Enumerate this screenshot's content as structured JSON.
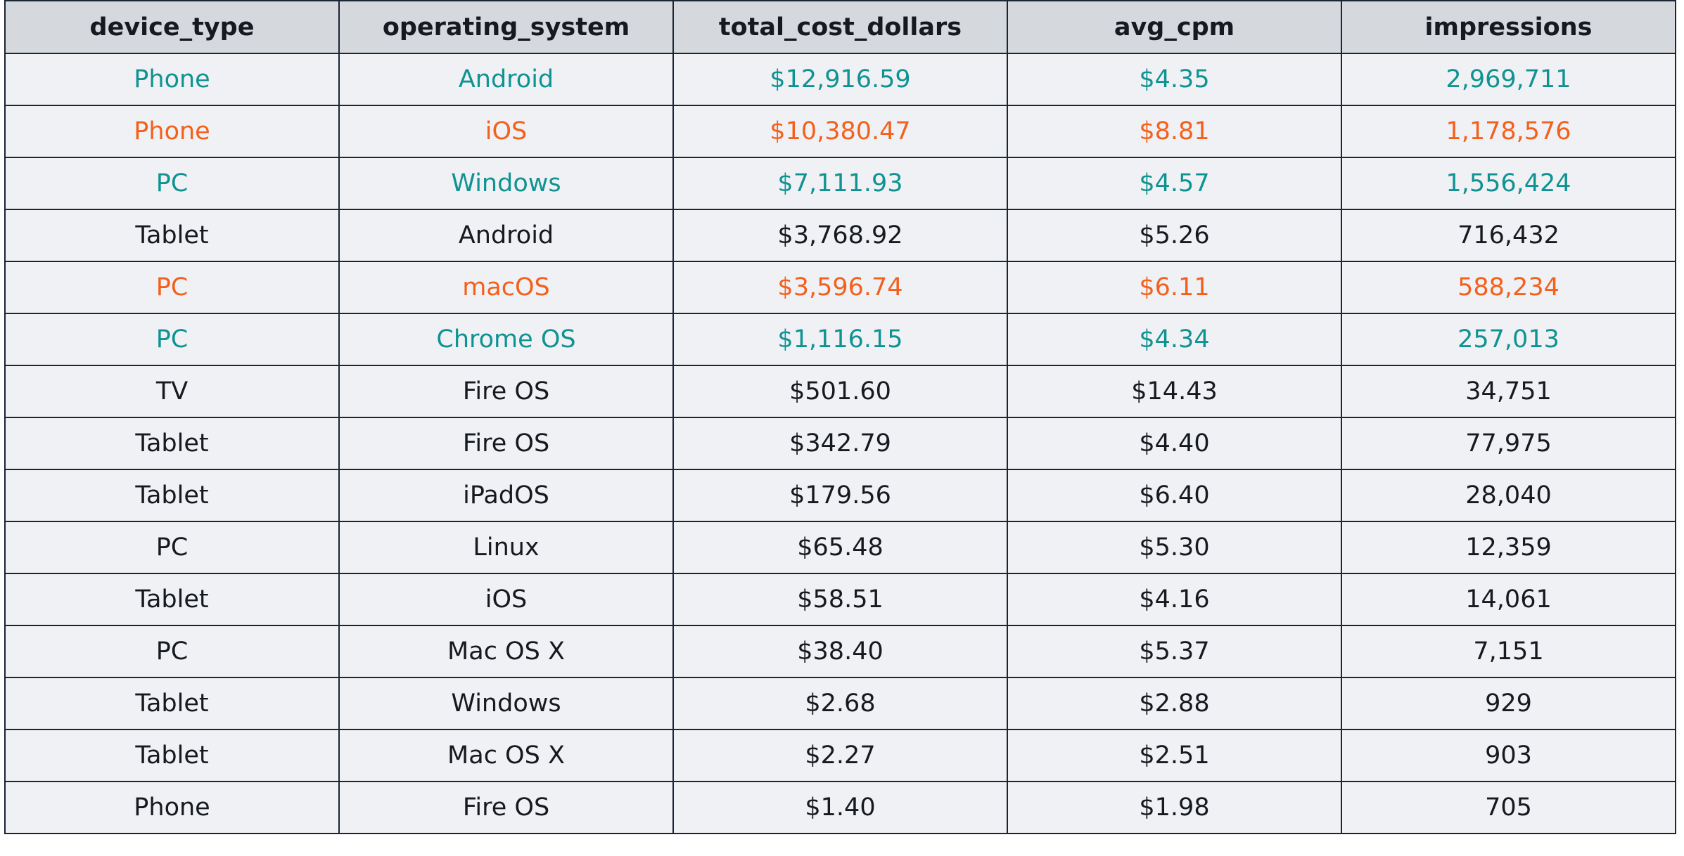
{
  "table": {
    "columns": [
      "device_type",
      "operating_system",
      "total_cost_dollars",
      "avg_cpm",
      "impressions"
    ],
    "colors": {
      "teal": "#0f9392",
      "orange": "#f4601c",
      "default": "#16191f",
      "header_bg": "#d5d8dd",
      "row_bg": "#f0f1f4",
      "border": "#1b2634"
    },
    "rows": [
      {
        "highlight": "teal",
        "cells": [
          "Phone",
          "Android",
          "$12,916.59",
          "$4.35",
          "2,969,711"
        ]
      },
      {
        "highlight": "orange",
        "cells": [
          "Phone",
          "iOS",
          "$10,380.47",
          "$8.81",
          "1,178,576"
        ]
      },
      {
        "highlight": "teal",
        "cells": [
          "PC",
          "Windows",
          "$7,111.93",
          "$4.57",
          "1,556,424"
        ]
      },
      {
        "highlight": "none",
        "cells": [
          "Tablet",
          "Android",
          "$3,768.92",
          "$5.26",
          "716,432"
        ]
      },
      {
        "highlight": "orange",
        "cells": [
          "PC",
          "macOS",
          "$3,596.74",
          "$6.11",
          "588,234"
        ]
      },
      {
        "highlight": "teal",
        "cells": [
          "PC",
          "Chrome OS",
          "$1,116.15",
          "$4.34",
          "257,013"
        ]
      },
      {
        "highlight": "none",
        "cells": [
          "TV",
          "Fire OS",
          "$501.60",
          "$14.43",
          "34,751"
        ]
      },
      {
        "highlight": "none",
        "cells": [
          "Tablet",
          "Fire OS",
          "$342.79",
          "$4.40",
          "77,975"
        ]
      },
      {
        "highlight": "none",
        "cells": [
          "Tablet",
          "iPadOS",
          "$179.56",
          "$6.40",
          "28,040"
        ]
      },
      {
        "highlight": "none",
        "cells": [
          "PC",
          "Linux",
          "$65.48",
          "$5.30",
          "12,359"
        ]
      },
      {
        "highlight": "none",
        "cells": [
          "Tablet",
          "iOS",
          "$58.51",
          "$4.16",
          "14,061"
        ]
      },
      {
        "highlight": "none",
        "cells": [
          "PC",
          "Mac OS X",
          "$38.40",
          "$5.37",
          "7,151"
        ]
      },
      {
        "highlight": "none",
        "cells": [
          "Tablet",
          "Windows",
          "$2.68",
          "$2.88",
          "929"
        ]
      },
      {
        "highlight": "none",
        "cells": [
          "Tablet",
          "Mac OS X",
          "$2.27",
          "$2.51",
          "903"
        ]
      },
      {
        "highlight": "none",
        "cells": [
          "Phone",
          "Fire OS",
          "$1.40",
          "$1.98",
          "705"
        ]
      }
    ]
  }
}
